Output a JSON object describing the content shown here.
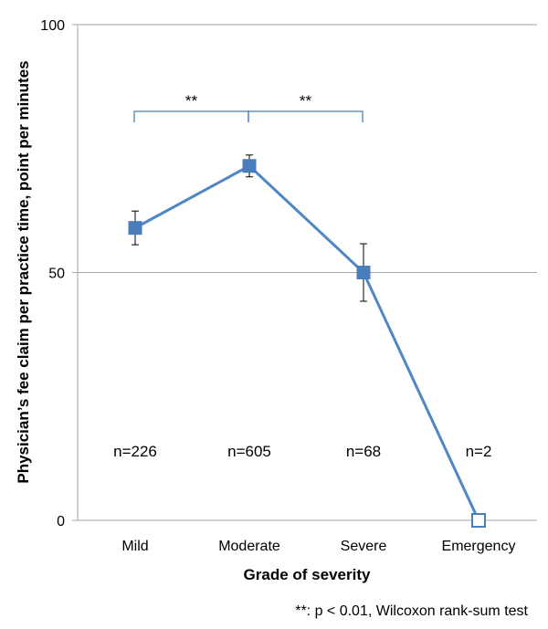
{
  "chart_data": {
    "type": "line",
    "categories": [
      "Mild",
      "Moderate",
      "Severe",
      "Emergency"
    ],
    "series": [
      {
        "values": [
          59,
          71.5,
          50,
          0
        ],
        "error": [
          3.4,
          2.2,
          5.8,
          0
        ],
        "marker_filled": [
          true,
          true,
          true,
          false
        ]
      }
    ],
    "sample_sizes": [
      "n=226",
      "n=605",
      "n=68",
      "n=2"
    ],
    "ylim": [
      0,
      100
    ],
    "yticks": [
      0,
      50,
      100
    ],
    "ytick_labels": [
      "0",
      "50",
      "100"
    ],
    "grid": true,
    "xlabel": "Grade of severity",
    "ylabel": "Physician’s fee claim per practice time, point per minutes",
    "significance": [
      {
        "from": 0,
        "to": 1,
        "label": "**"
      },
      {
        "from": 1,
        "to": 2,
        "label": "**"
      }
    ],
    "footnote": "**: p < 0.01, Wilcoxon rank-sum test",
    "colors": {
      "line": "#4F86C6",
      "marker": "#4A7EBB",
      "bracket": "#4A7EBB",
      "grid": "#A6A6A6",
      "error": "#000000"
    }
  }
}
